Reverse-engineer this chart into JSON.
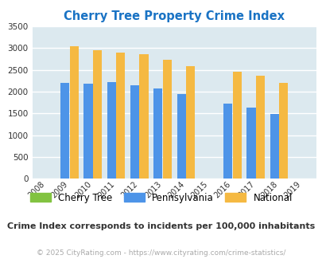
{
  "title": "Cherry Tree Property Crime Index",
  "years": [
    2008,
    2009,
    2010,
    2011,
    2012,
    2013,
    2014,
    2015,
    2016,
    2017,
    2018,
    2019
  ],
  "pennsylvania": [
    0,
    2200,
    2175,
    2225,
    2150,
    2075,
    1950,
    0,
    1725,
    1640,
    1490,
    0
  ],
  "national": [
    0,
    3040,
    2960,
    2900,
    2860,
    2730,
    2590,
    0,
    2465,
    2365,
    2210,
    0
  ],
  "cherry_tree": [
    0,
    0,
    0,
    0,
    0,
    0,
    0,
    0,
    0,
    0,
    0,
    0
  ],
  "color_pennsylvania": "#4d94e8",
  "color_national": "#f5b942",
  "color_cherry_tree": "#82c341",
  "ylim": [
    0,
    3500
  ],
  "yticks": [
    0,
    500,
    1000,
    1500,
    2000,
    2500,
    3000,
    3500
  ],
  "background_color": "#dce9ef",
  "grid_color": "#ffffff",
  "title_color": "#1a73c4",
  "subtitle": "Crime Index corresponds to incidents per 100,000 inhabitants",
  "footer": "© 2025 CityRating.com - https://www.cityrating.com/crime-statistics/",
  "legend_labels": [
    "Cherry Tree",
    "Pennsylvania",
    "National"
  ]
}
